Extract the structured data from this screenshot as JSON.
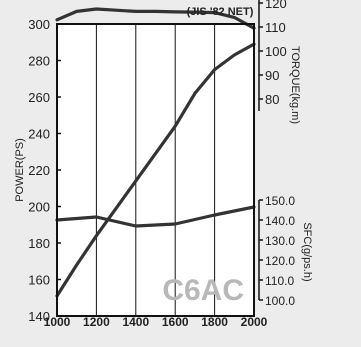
{
  "chart_data": {
    "type": "line",
    "title": "(JIS '82 NET)",
    "watermark": "C6AC",
    "xlabel": "",
    "x_ticks": [
      1000,
      1200,
      1400,
      1600,
      1800,
      2000
    ],
    "xlim": [
      1000,
      2000
    ],
    "grid_vertical": true,
    "axes": {
      "power": {
        "label": "POWER(PS)",
        "ticks": [
          140,
          160,
          180,
          200,
          220,
          240,
          260,
          280,
          300
        ],
        "range": [
          140,
          300
        ],
        "side": "left"
      },
      "torque": {
        "label": "TORQUE(kg.m)",
        "ticks": [
          80,
          90,
          100,
          110,
          120
        ],
        "range": [
          75,
          125
        ],
        "side": "right-upper"
      },
      "sfc": {
        "label": "SFC(g/ps.h)",
        "ticks": [
          "150.0",
          "140.0",
          "130.0",
          "120.0",
          "110.0",
          "100.0"
        ],
        "range": [
          100,
          150
        ],
        "side": "right-lower"
      }
    },
    "series": [
      {
        "axis": "power",
        "x": [
          1000,
          1100,
          1200,
          1300,
          1400,
          1500,
          1600,
          1700,
          1800,
          1900,
          2000
        ],
        "values": [
          151,
          168,
          184,
          199,
          214,
          229,
          244,
          262,
          275,
          283,
          289
        ]
      },
      {
        "axis": "torque",
        "x": [
          1000,
          1100,
          1200,
          1300,
          1400,
          1500,
          1600,
          1700,
          1800,
          1900,
          2000
        ],
        "values": [
          113,
          116.5,
          117.5,
          117,
          116.5,
          116.5,
          116.3,
          116.2,
          116,
          114,
          109.5
        ]
      },
      {
        "axis": "sfc",
        "x": [
          1000,
          1200,
          1400,
          1600,
          1800,
          2000
        ],
        "values": [
          140,
          141.5,
          137,
          138,
          142.5,
          146.5
        ]
      }
    ]
  }
}
